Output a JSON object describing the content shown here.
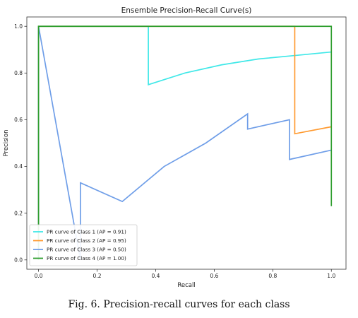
{
  "chart_data": {
    "type": "line",
    "title": "Ensemble Precision-Recall Curve(s)",
    "xlabel": "Recall",
    "ylabel": "Precision",
    "xlim": [
      -0.04,
      1.05
    ],
    "ylim": [
      -0.04,
      1.04
    ],
    "x_ticks": [
      0.0,
      0.2,
      0.4,
      0.6,
      0.8,
      1.0
    ],
    "y_ticks": [
      0.0,
      0.2,
      0.4,
      0.6,
      0.8,
      1.0
    ],
    "grid": false,
    "legend_position": "lower-left",
    "series": [
      {
        "name": "PR curve of Class 1 (AP = 0.91)",
        "color": "#40e8e8",
        "x": [
          0.0,
          0.0,
          0.375,
          0.375,
          0.5,
          0.625,
          0.75,
          0.875,
          1.0
        ],
        "y": [
          0.0,
          1.0,
          1.0,
          0.75,
          0.8,
          0.835,
          0.86,
          0.875,
          0.89
        ]
      },
      {
        "name": "PR curve of Class 2 (AP = 0.95)",
        "color": "#ff9a30",
        "x": [
          0.0,
          0.0,
          0.875,
          0.875,
          1.0
        ],
        "y": [
          0.0,
          1.0,
          1.0,
          0.54,
          0.57
        ]
      },
      {
        "name": "PR curve of Class 3 (AP = 0.50)",
        "color": "#6f9ee8",
        "x": [
          0.0,
          0.0,
          0.143,
          0.143,
          0.286,
          0.429,
          0.571,
          0.714,
          0.714,
          0.857,
          0.857,
          1.0
        ],
        "y": [
          0.0,
          1.0,
          0.0,
          0.33,
          0.25,
          0.4,
          0.5,
          0.625,
          0.56,
          0.6,
          0.43,
          0.47
        ]
      },
      {
        "name": "PR curve of Class 4 (AP = 1.00)",
        "color": "#2e9e2e",
        "x": [
          0.0,
          0.0,
          1.0,
          1.0
        ],
        "y": [
          0.0,
          1.0,
          1.0,
          0.23
        ]
      }
    ]
  },
  "caption": "Fig. 6.  Precision-recall curves for each class"
}
